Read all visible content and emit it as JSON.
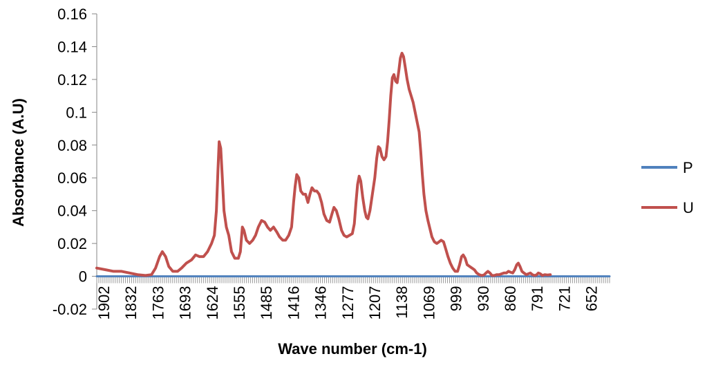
{
  "chart_data": {
    "type": "line",
    "title": "",
    "xlabel": "Wave number (cm-1)",
    "ylabel": "Absorbance (A.U)",
    "x_reversed": true,
    "xlim": [
      1902,
      620
    ],
    "ylim": [
      -0.02,
      0.16
    ],
    "y_ticks": [
      -0.02,
      0,
      0.02,
      0.04,
      0.06,
      0.08,
      0.1,
      0.12,
      0.14,
      0.16
    ],
    "y_tick_labels": [
      "-0.02",
      "0",
      "0.02",
      "0.04",
      "0.06",
      "0.08",
      "0.1",
      "0.12",
      "0.14",
      "0.16"
    ],
    "x_tick_labels": [
      "1902",
      "1832",
      "1763",
      "1693",
      "1624",
      "1555",
      "1485",
      "1416",
      "1346",
      "1277",
      "1207",
      "1138",
      "1069",
      "999",
      "930",
      "860",
      "791",
      "721",
      "652"
    ],
    "grid": false,
    "legend_position": "right",
    "series": [
      {
        "name": "P",
        "color": "#4F81BD",
        "points": [
          [
            1902,
            0
          ],
          [
            620,
            0
          ]
        ]
      },
      {
        "name": "U",
        "color": "#C0504D",
        "points": [
          [
            1902,
            0.005
          ],
          [
            1880,
            0.004
          ],
          [
            1860,
            0.003
          ],
          [
            1840,
            0.003
          ],
          [
            1820,
            0.002
          ],
          [
            1800,
            0.001
          ],
          [
            1780,
            0.0005
          ],
          [
            1765,
            0.001
          ],
          [
            1755,
            0.005
          ],
          [
            1745,
            0.012
          ],
          [
            1738,
            0.015
          ],
          [
            1730,
            0.012
          ],
          [
            1722,
            0.006
          ],
          [
            1712,
            0.003
          ],
          [
            1700,
            0.003
          ],
          [
            1690,
            0.005
          ],
          [
            1678,
            0.008
          ],
          [
            1665,
            0.01
          ],
          [
            1655,
            0.013
          ],
          [
            1645,
            0.012
          ],
          [
            1635,
            0.012
          ],
          [
            1625,
            0.015
          ],
          [
            1615,
            0.02
          ],
          [
            1608,
            0.025
          ],
          [
            1603,
            0.04
          ],
          [
            1599,
            0.065
          ],
          [
            1596,
            0.082
          ],
          [
            1592,
            0.078
          ],
          [
            1588,
            0.06
          ],
          [
            1584,
            0.04
          ],
          [
            1578,
            0.03
          ],
          [
            1572,
            0.025
          ],
          [
            1565,
            0.015
          ],
          [
            1557,
            0.011
          ],
          [
            1548,
            0.011
          ],
          [
            1543,
            0.015
          ],
          [
            1538,
            0.03
          ],
          [
            1534,
            0.028
          ],
          [
            1528,
            0.022
          ],
          [
            1520,
            0.02
          ],
          [
            1512,
            0.022
          ],
          [
            1505,
            0.025
          ],
          [
            1498,
            0.03
          ],
          [
            1490,
            0.034
          ],
          [
            1482,
            0.033
          ],
          [
            1475,
            0.03
          ],
          [
            1468,
            0.028
          ],
          [
            1460,
            0.03
          ],
          [
            1452,
            0.027
          ],
          [
            1445,
            0.024
          ],
          [
            1437,
            0.022
          ],
          [
            1430,
            0.022
          ],
          [
            1422,
            0.025
          ],
          [
            1415,
            0.03
          ],
          [
            1410,
            0.045
          ],
          [
            1406,
            0.055
          ],
          [
            1402,
            0.062
          ],
          [
            1397,
            0.06
          ],
          [
            1392,
            0.052
          ],
          [
            1386,
            0.05
          ],
          [
            1380,
            0.05
          ],
          [
            1374,
            0.045
          ],
          [
            1369,
            0.05
          ],
          [
            1364,
            0.054
          ],
          [
            1358,
            0.052
          ],
          [
            1352,
            0.052
          ],
          [
            1346,
            0.05
          ],
          [
            1340,
            0.045
          ],
          [
            1334,
            0.038
          ],
          [
            1327,
            0.034
          ],
          [
            1320,
            0.033
          ],
          [
            1314,
            0.038
          ],
          [
            1309,
            0.042
          ],
          [
            1303,
            0.04
          ],
          [
            1297,
            0.035
          ],
          [
            1290,
            0.028
          ],
          [
            1284,
            0.025
          ],
          [
            1277,
            0.024
          ],
          [
            1270,
            0.025
          ],
          [
            1263,
            0.026
          ],
          [
            1258,
            0.032
          ],
          [
            1254,
            0.045
          ],
          [
            1250,
            0.056
          ],
          [
            1246,
            0.061
          ],
          [
            1242,
            0.058
          ],
          [
            1237,
            0.048
          ],
          [
            1232,
            0.04
          ],
          [
            1228,
            0.036
          ],
          [
            1224,
            0.035
          ],
          [
            1219,
            0.04
          ],
          [
            1213,
            0.05
          ],
          [
            1207,
            0.06
          ],
          [
            1202,
            0.072
          ],
          [
            1198,
            0.079
          ],
          [
            1194,
            0.078
          ],
          [
            1189,
            0.073
          ],
          [
            1184,
            0.071
          ],
          [
            1179,
            0.073
          ],
          [
            1175,
            0.082
          ],
          [
            1171,
            0.095
          ],
          [
            1167,
            0.11
          ],
          [
            1163,
            0.121
          ],
          [
            1159,
            0.123
          ],
          [
            1155,
            0.119
          ],
          [
            1151,
            0.118
          ],
          [
            1147,
            0.125
          ],
          [
            1143,
            0.133
          ],
          [
            1139,
            0.136
          ],
          [
            1135,
            0.134
          ],
          [
            1131,
            0.128
          ],
          [
            1126,
            0.12
          ],
          [
            1121,
            0.114
          ],
          [
            1116,
            0.11
          ],
          [
            1111,
            0.106
          ],
          [
            1106,
            0.1
          ],
          [
            1101,
            0.094
          ],
          [
            1096,
            0.088
          ],
          [
            1092,
            0.076
          ],
          [
            1088,
            0.062
          ],
          [
            1084,
            0.05
          ],
          [
            1079,
            0.04
          ],
          [
            1074,
            0.034
          ],
          [
            1069,
            0.029
          ],
          [
            1064,
            0.024
          ],
          [
            1058,
            0.021
          ],
          [
            1052,
            0.02
          ],
          [
            1046,
            0.021
          ],
          [
            1041,
            0.022
          ],
          [
            1035,
            0.021
          ],
          [
            1030,
            0.017
          ],
          [
            1024,
            0.012
          ],
          [
            1018,
            0.008
          ],
          [
            1012,
            0.005
          ],
          [
            1006,
            0.003
          ],
          [
            1000,
            0.003
          ],
          [
            995,
            0.007
          ],
          [
            990,
            0.012
          ],
          [
            986,
            0.013
          ],
          [
            981,
            0.011
          ],
          [
            976,
            0.007
          ],
          [
            970,
            0.006
          ],
          [
            964,
            0.005
          ],
          [
            958,
            0.004
          ],
          [
            952,
            0.002
          ],
          [
            946,
            0.001
          ],
          [
            940,
            0.0005
          ],
          [
            934,
            0.0008
          ],
          [
            929,
            0.002
          ],
          [
            924,
            0.003
          ],
          [
            919,
            0.002
          ],
          [
            914,
            0.0005
          ],
          [
            908,
            0.0005
          ],
          [
            902,
            0.001
          ],
          [
            896,
            0.001
          ],
          [
            890,
            0.0015
          ],
          [
            884,
            0.002
          ],
          [
            878,
            0.002
          ],
          [
            873,
            0.003
          ],
          [
            868,
            0.0025
          ],
          [
            862,
            0.002
          ],
          [
            857,
            0.004
          ],
          [
            852,
            0.007
          ],
          [
            848,
            0.008
          ],
          [
            844,
            0.006
          ],
          [
            839,
            0.003
          ],
          [
            834,
            0.002
          ],
          [
            828,
            0.001
          ],
          [
            823,
            0.0015
          ],
          [
            818,
            0.002
          ],
          [
            813,
            0.001
          ],
          [
            808,
            0.0005
          ],
          [
            803,
            0.0008
          ],
          [
            798,
            0.002
          ],
          [
            793,
            0.0015
          ],
          [
            788,
            0.0005
          ],
          [
            782,
            0.001
          ],
          [
            775,
            0.0008
          ],
          [
            768,
            0.001
          ]
        ]
      }
    ]
  }
}
